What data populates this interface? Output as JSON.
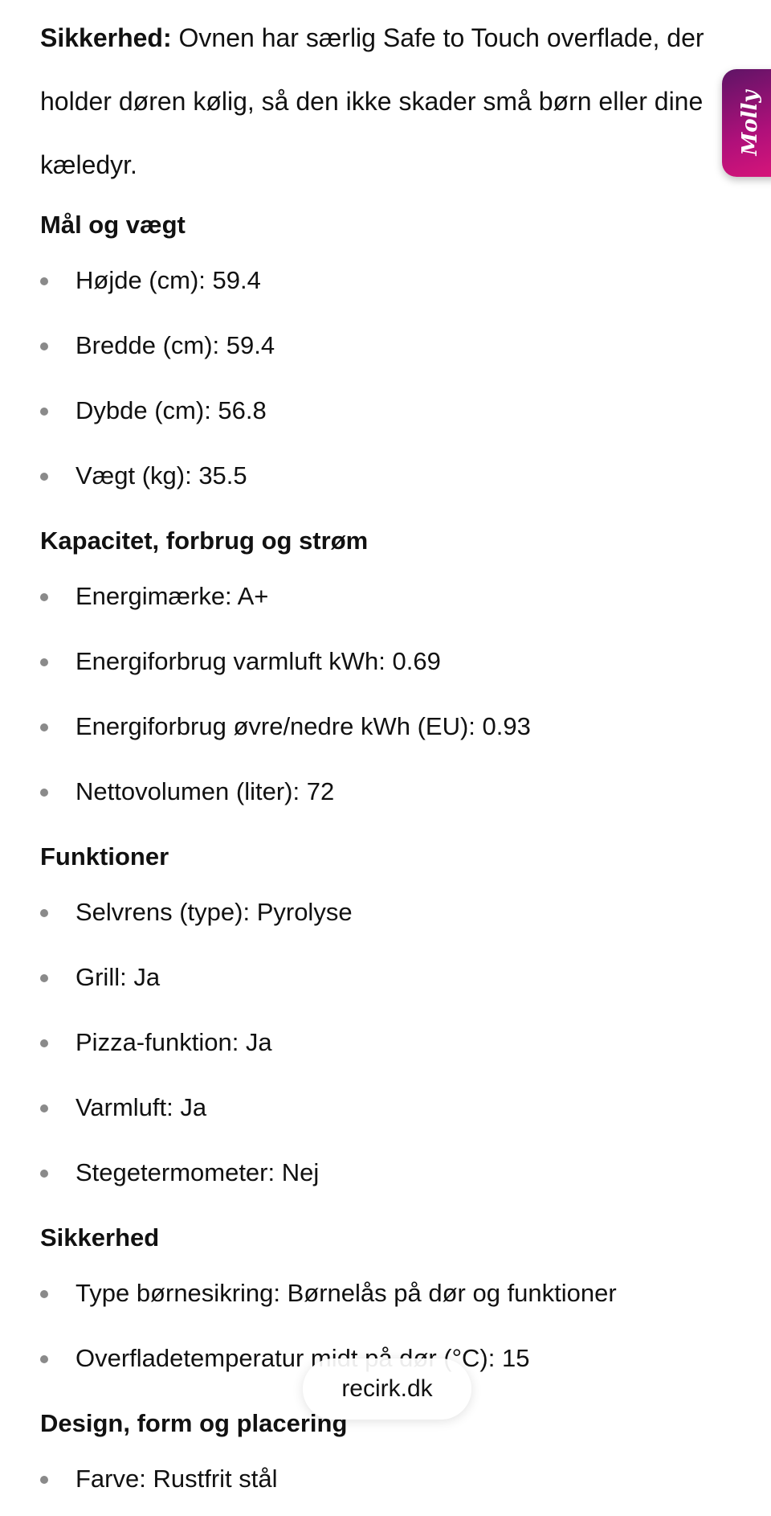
{
  "intro": {
    "label": "Sikkerhed:",
    "text": " Ovnen har særlig Safe to Touch overflade, der holder døren kølig, så den ikke skader små børn eller dine kæledyr."
  },
  "sections": [
    {
      "title": "Mål og vægt",
      "items": [
        "Højde (cm): 59.4",
        "Bredde (cm): 59.4",
        "Dybde (cm): 56.8",
        "Vægt (kg): 35.5"
      ]
    },
    {
      "title": "Kapacitet, forbrug og strøm",
      "items": [
        "Energimærke: A+",
        "Energiforbrug varmluft kWh: 0.69",
        "Energiforbrug øvre/nedre kWh (EU): 0.93",
        "Nettovolumen (liter): 72"
      ]
    },
    {
      "title": "Funktioner",
      "items": [
        "Selvrens (type): Pyrolyse",
        "Grill: Ja",
        "Pizza-funktion: Ja",
        "Varmluft: Ja",
        "Stegetermometer: Nej"
      ]
    },
    {
      "title": "Sikkerhed",
      "items": [
        "Type børnesikring: Børnelås på dør og funktioner",
        "Overfladetemperatur midt på dør (°C): 15"
      ]
    },
    {
      "title": "Design, form og placering",
      "items": [
        "Farve: Rustfrit stål"
      ]
    }
  ],
  "molly": {
    "label": "Molly",
    "colors": [
      "#5e1466",
      "#d8157a"
    ]
  },
  "url_pill": {
    "text": "recirk.dk"
  }
}
